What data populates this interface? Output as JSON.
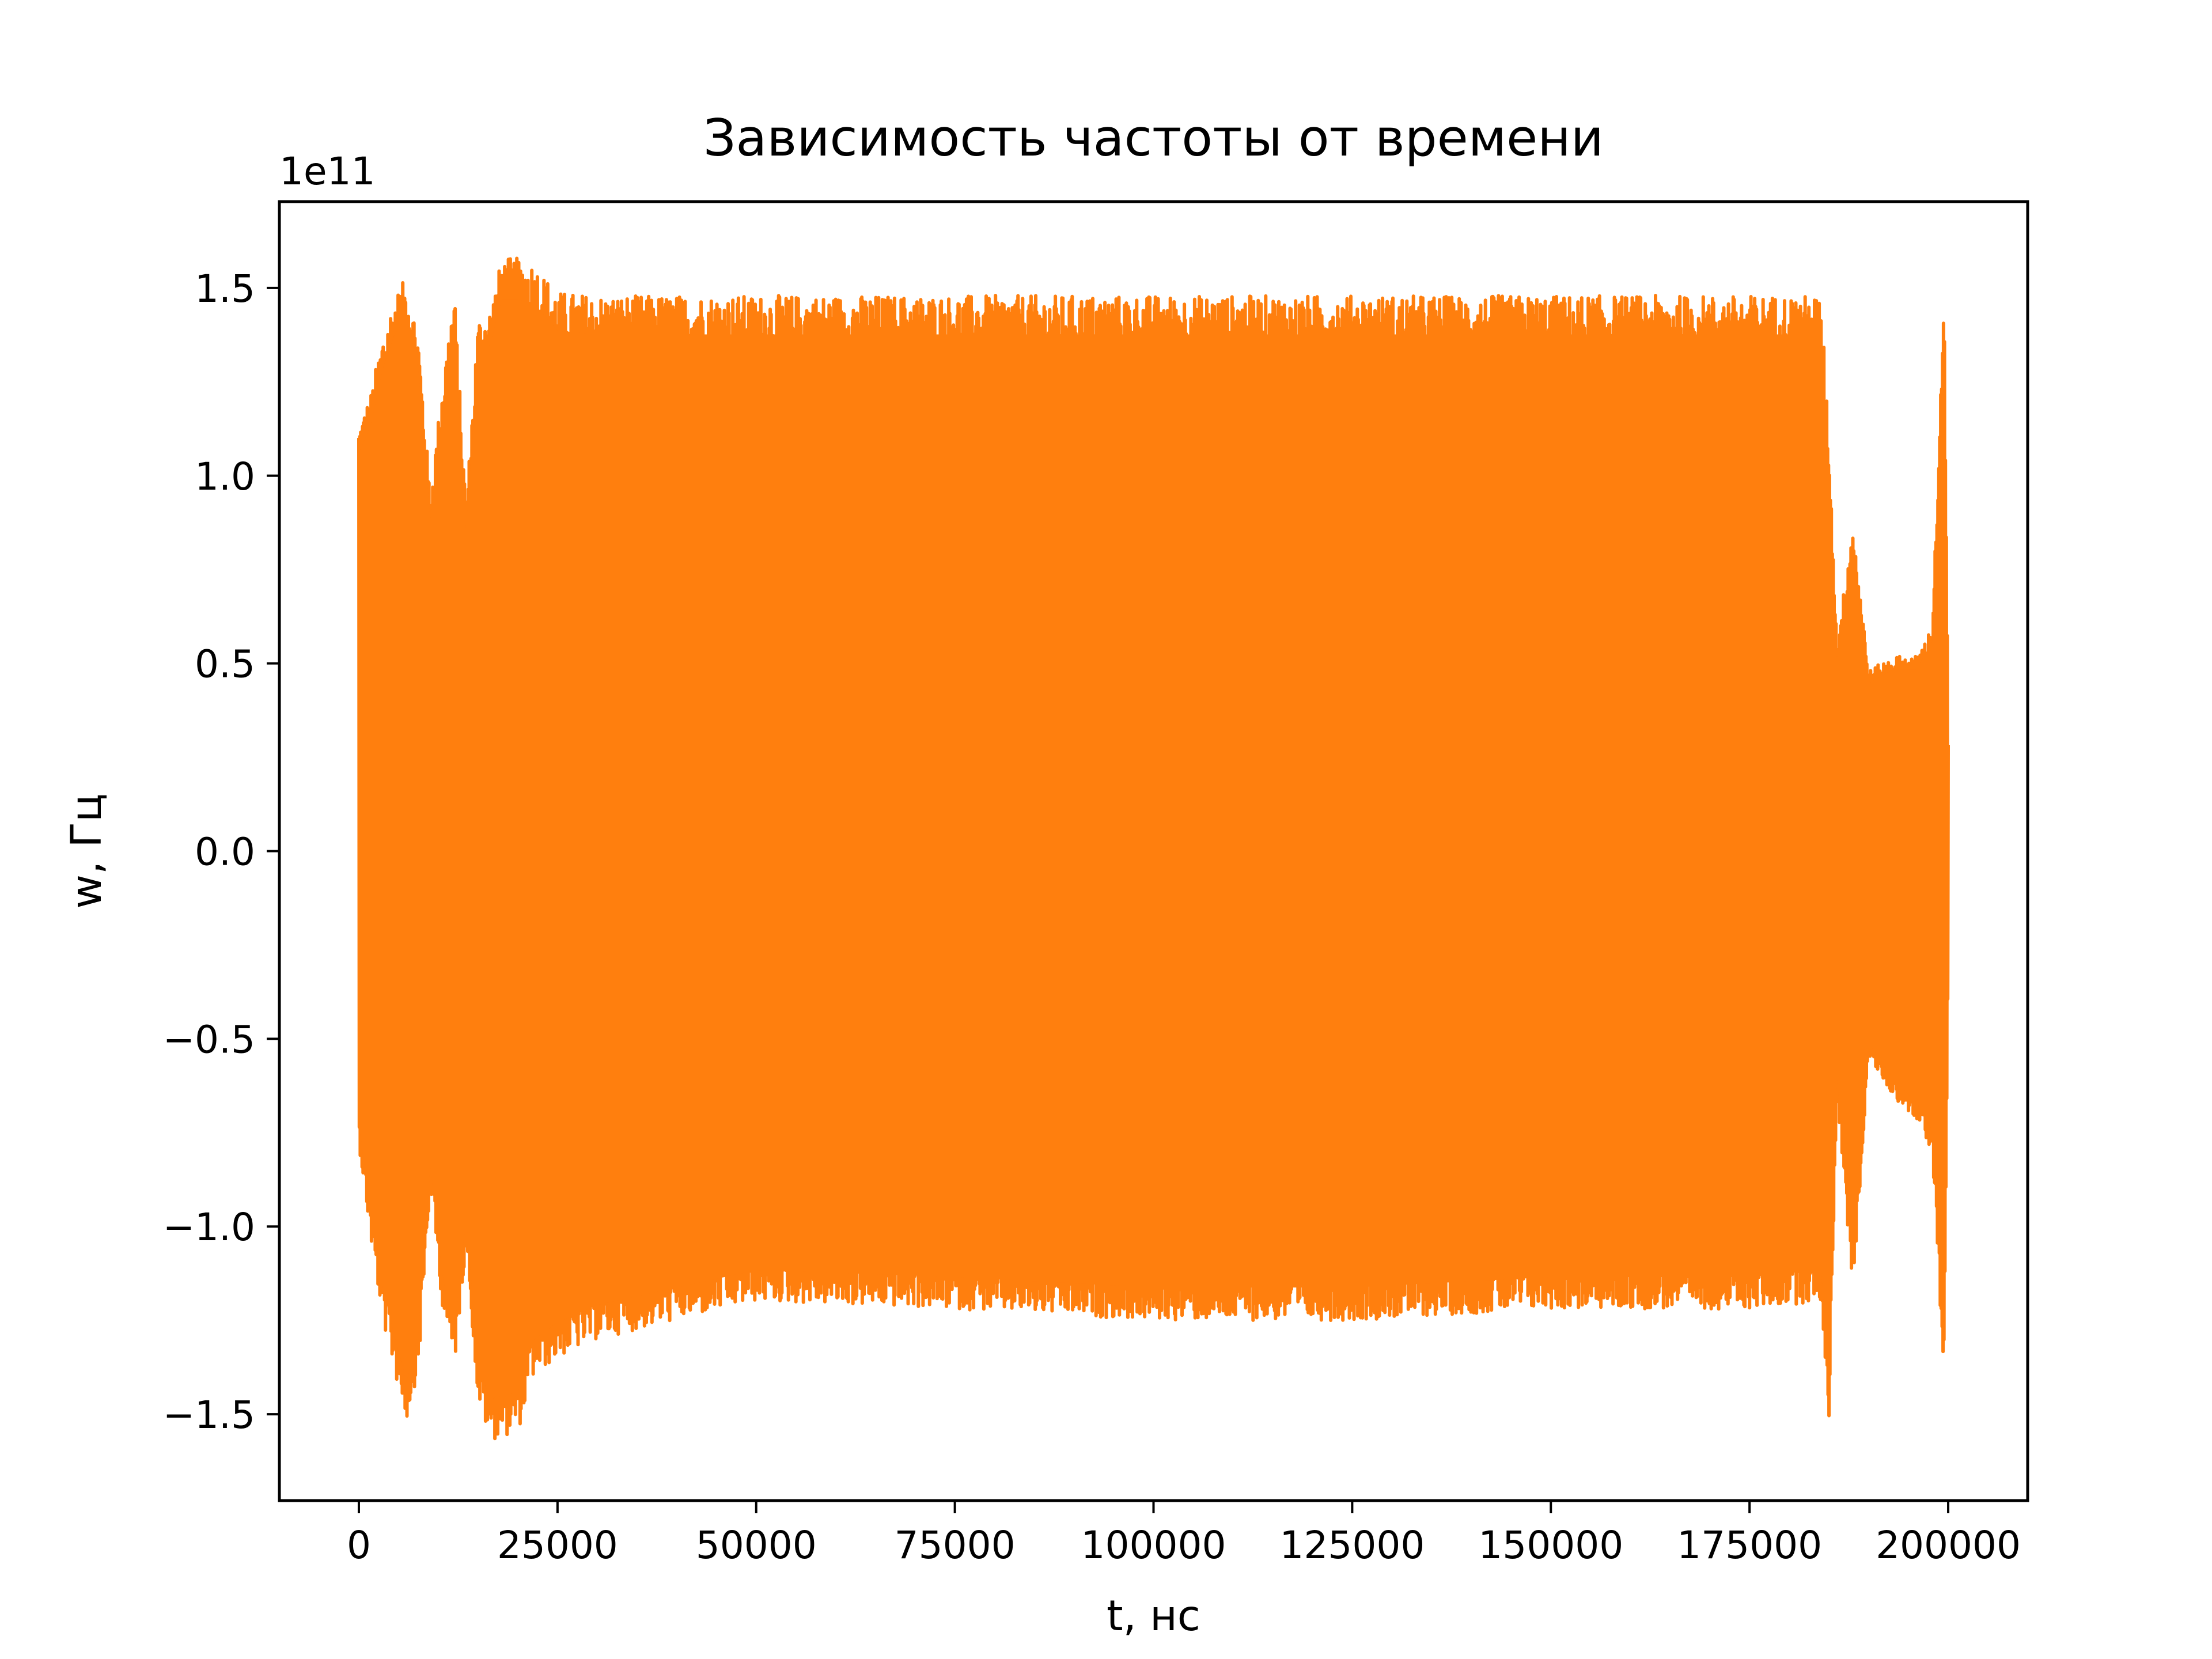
{
  "chart_data": {
    "type": "line",
    "title": "Зависимость частоты от времени",
    "xlabel": "t, нс",
    "ylabel": "w, Гц",
    "y_offset_text": "1e11",
    "xlim": [
      -10000,
      210000
    ],
    "ylim": [
      -1.73,
      1.73
    ],
    "x_ticks": [
      0,
      25000,
      50000,
      75000,
      100000,
      125000,
      150000,
      175000,
      200000
    ],
    "x_tick_labels": [
      "0",
      "25000",
      "50000",
      "75000",
      "100000",
      "125000",
      "150000",
      "175000",
      "200000"
    ],
    "y_ticks": [
      -1.5,
      -1.0,
      -0.5,
      0.0,
      0.5,
      1.0,
      1.5
    ],
    "y_tick_labels": [
      "−1.5",
      "−1.0",
      "−0.5",
      "0.0",
      "0.5",
      "1.0",
      "1.5"
    ],
    "grid": false,
    "series": [
      {
        "color": "#ff7f0e",
        "x_range": [
          0,
          200000
        ],
        "envelope": {
          "x": [
            0,
            1500,
            3000,
            4500,
            6000,
            7500,
            9000,
            10500,
            12000,
            13500,
            15000,
            16500,
            18000,
            20000,
            22000,
            25000,
            30000,
            40000,
            50000,
            75000,
            100000,
            125000,
            150000,
            175000,
            184000,
            185000,
            186000,
            188000,
            190000,
            193000,
            196000,
            198000,
            199500,
            200000
          ],
          "upper": [
            1.14,
            1.22,
            1.38,
            1.48,
            1.53,
            1.38,
            0.95,
            1.25,
            1.5,
            0.92,
            1.42,
            1.45,
            1.58,
            1.58,
            1.57,
            1.49,
            1.48,
            1.48,
            1.48,
            1.48,
            1.48,
            1.48,
            1.48,
            1.48,
            1.48,
            1.1,
            0.55,
            0.88,
            0.48,
            0.52,
            0.52,
            0.6,
            1.48,
            0.3
          ],
          "lower": [
            -0.78,
            -1.04,
            -1.25,
            -1.39,
            -1.52,
            -1.38,
            -0.9,
            -1.21,
            -1.38,
            -1.05,
            -1.47,
            -1.57,
            -1.56,
            -1.55,
            -1.4,
            -1.35,
            -1.3,
            -1.25,
            -1.2,
            -1.22,
            -1.25,
            -1.25,
            -1.22,
            -1.22,
            -1.2,
            -1.51,
            -0.65,
            -1.17,
            -0.55,
            -0.65,
            -0.72,
            -0.8,
            -1.42,
            -0.3
          ]
        }
      }
    ]
  }
}
